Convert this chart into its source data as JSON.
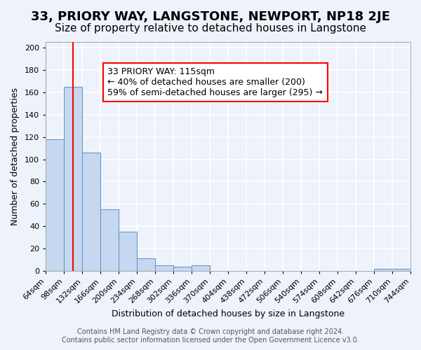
{
  "title": "33, PRIORY WAY, LANGSTONE, NEWPORT, NP18 2JE",
  "subtitle": "Size of property relative to detached houses in Langstone",
  "xlabel": "Distribution of detached houses by size in Langstone",
  "ylabel": "Number of detached properties",
  "bar_values": [
    118,
    165,
    106,
    55,
    35,
    11,
    5,
    4,
    5,
    0,
    0,
    0,
    0,
    0,
    0,
    0,
    0,
    0,
    2
  ],
  "bin_edges": [
    64,
    98,
    132,
    166,
    200,
    234,
    268,
    302,
    336,
    370,
    404,
    438,
    472,
    506,
    540,
    574,
    608,
    642,
    676,
    744
  ],
  "tick_labels": [
    "64sqm",
    "98sqm",
    "132sqm",
    "166sqm",
    "200sqm",
    "234sqm",
    "268sqm",
    "302sqm",
    "336sqm",
    "370sqm",
    "404sqm",
    "438sqm",
    "472sqm",
    "506sqm",
    "540sqm",
    "574sqm",
    "608sqm",
    "642sqm",
    "676sqm",
    "710sqm",
    "744sqm"
  ],
  "bar_color": "#c5d8f0",
  "bar_edge_color": "#5b8fc9",
  "background_color": "#eef2fb",
  "grid_color": "#ffffff",
  "red_line_x": 115,
  "annotation_lines": [
    "33 PRIORY WAY: 115sqm",
    "← 40% of detached houses are smaller (200)",
    "59% of semi-detached houses are larger (295) →"
  ],
  "ylim": [
    0,
    205
  ],
  "yticks": [
    0,
    20,
    40,
    60,
    80,
    100,
    120,
    140,
    160,
    180,
    200
  ],
  "all_tick_positions": [
    64,
    98,
    132,
    166,
    200,
    234,
    268,
    302,
    336,
    370,
    404,
    438,
    472,
    506,
    540,
    574,
    608,
    642,
    676,
    710,
    744
  ],
  "footer_line1": "Contains HM Land Registry data © Crown copyright and database right 2024.",
  "footer_line2": "Contains public sector information licensed under the Open Government Licence v3.0.",
  "title_fontsize": 13,
  "subtitle_fontsize": 11,
  "axis_label_fontsize": 9,
  "tick_fontsize": 8,
  "annotation_fontsize": 9,
  "footer_fontsize": 7
}
